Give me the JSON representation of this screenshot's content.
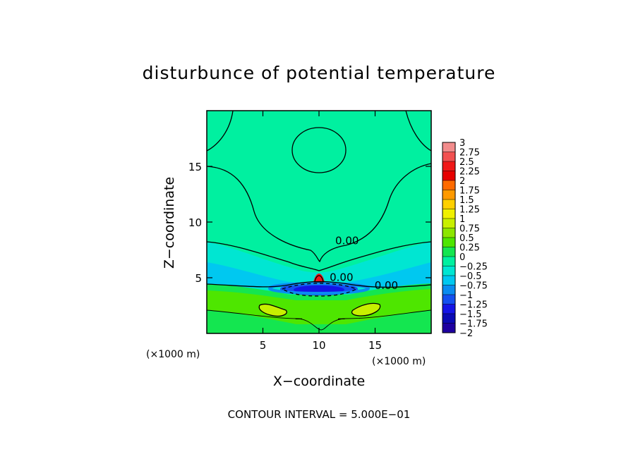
{
  "chart_data": {
    "type": "contour",
    "title": "disturbunce of potential temperature",
    "xlabel": "X−coordinate",
    "ylabel": "Z−coordinate",
    "x_unit": "(×1000 m)",
    "z_unit": "(×1000 m)",
    "xlim": [
      0,
      20
    ],
    "ylim": [
      0,
      20
    ],
    "x_ticks": [
      5,
      10,
      15
    ],
    "y_ticks": [
      5,
      10,
      15
    ],
    "x_tick_labels": [
      "5",
      "10",
      "15"
    ],
    "y_tick_labels": [
      "5",
      "10",
      "15"
    ],
    "contour_interval_text": "CONTOUR INTERVAL = 5.000E−01",
    "contour_interval": 0.5,
    "contour_labels": [
      {
        "text": "0.00",
        "x": 12.5,
        "z": 8.0
      },
      {
        "text": "0.00",
        "x": 12.0,
        "z": 4.7
      },
      {
        "text": "0.00",
        "x": 16.0,
        "z": 4.0
      },
      {
        "text": "−",
        "x": 8.2,
        "z": 1.0
      },
      {
        "text": "−",
        "x": 12.0,
        "z": 1.0
      }
    ],
    "colorbar": {
      "levels": [
        3,
        2.75,
        2.5,
        2.25,
        2,
        1.75,
        1.5,
        1.25,
        1,
        0.75,
        0.5,
        0.25,
        0,
        -0.25,
        -0.5,
        -0.75,
        -1,
        -1.25,
        -1.5,
        -1.75,
        -2
      ],
      "labels": [
        "3",
        "2.75",
        "2.5",
        "2.25",
        "2",
        "1.75",
        "1.5",
        "1.25",
        "1",
        "0.75",
        "0.5",
        "0.25",
        "0",
        "−0.25",
        "−0.5",
        "−0.75",
        "−1",
        "−1.25",
        "−1.5",
        "−1.75",
        "−2"
      ],
      "colors": [
        "#f28c8c",
        "#f25050",
        "#f01818",
        "#e60000",
        "#ff6a00",
        "#ff9a00",
        "#ffd000",
        "#f0f000",
        "#c8f000",
        "#8ce600",
        "#4ee600",
        "#14e650",
        "#00f0a0",
        "#00e6d2",
        "#00c8f0",
        "#0a8cf0",
        "#1450f0",
        "#1414e6",
        "#0a0ab4",
        "#1e00a0"
      ]
    },
    "field_colors": {
      "background": "#00f0a0",
      "weak_negative": "#00e6d2",
      "negative": "#00c8f0",
      "stronger_negative": "#0a8cf0",
      "strong_negative": "#1450f0",
      "strongest_negative": "#1414e6",
      "weak_positive": "#14e650",
      "positive": "#4ee600",
      "strong_positive": "#c8f000",
      "peak_positive": "#f01818"
    }
  }
}
